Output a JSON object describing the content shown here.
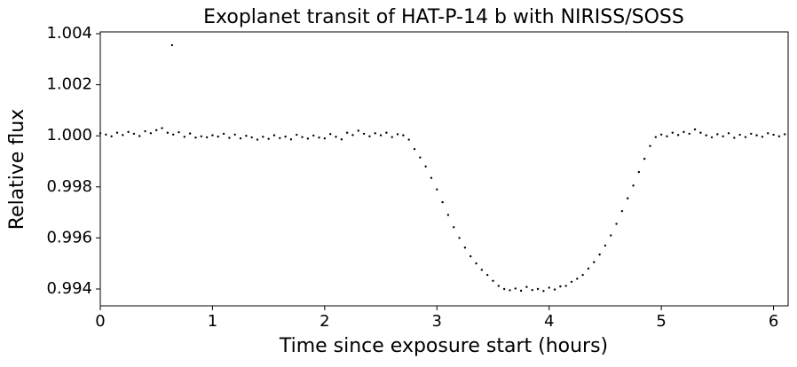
{
  "chart_data": {
    "type": "scatter",
    "title": "Exoplanet transit of HAT-P-14 b with NIRISS/SOSS",
    "x_label": "Time since exposure start (hours)",
    "y_label": "Relative flux",
    "color": "#000000",
    "xlim": [
      0,
      6.13
    ],
    "ylim": [
      0.99334,
      1.00407
    ],
    "xticks": [
      0,
      1,
      2,
      3,
      4,
      5,
      6
    ],
    "yticks": [
      0.994,
      0.996,
      0.998,
      {
        "value": 1,
        "label": "1.000"
      },
      1.002,
      1.004
    ],
    "x": [
      0.0,
      0.05,
      0.1,
      0.15,
      0.2,
      0.25,
      0.3,
      0.35,
      0.4,
      0.45,
      0.5,
      0.55,
      0.6,
      0.64,
      0.65,
      0.7,
      0.75,
      0.8,
      0.85,
      0.9,
      0.95,
      1.0,
      1.05,
      1.1,
      1.15,
      1.2,
      1.25,
      1.3,
      1.35,
      1.4,
      1.45,
      1.5,
      1.55,
      1.6,
      1.65,
      1.7,
      1.75,
      1.8,
      1.85,
      1.9,
      1.95,
      2.0,
      2.05,
      2.1,
      2.15,
      2.2,
      2.25,
      2.3,
      2.35,
      2.4,
      2.45,
      2.5,
      2.55,
      2.6,
      2.65,
      2.7,
      2.75,
      2.8,
      2.85,
      2.9,
      2.95,
      3.0,
      3.05,
      3.1,
      3.15,
      3.2,
      3.25,
      3.3,
      3.35,
      3.4,
      3.45,
      3.5,
      3.55,
      3.6,
      3.65,
      3.7,
      3.75,
      3.8,
      3.85,
      3.9,
      3.95,
      4.0,
      4.05,
      4.1,
      4.15,
      4.2,
      4.25,
      4.3,
      4.35,
      4.4,
      4.45,
      4.5,
      4.55,
      4.6,
      4.65,
      4.7,
      4.75,
      4.8,
      4.85,
      4.9,
      4.95,
      5.0,
      5.05,
      5.1,
      5.15,
      5.2,
      5.25,
      5.3,
      5.35,
      5.4,
      5.45,
      5.5,
      5.55,
      5.6,
      5.65,
      5.7,
      5.75,
      5.8,
      5.85,
      5.9,
      5.95,
      6.0,
      6.05,
      6.1
    ],
    "values": [
      1.0001,
      1.00005,
      0.99998,
      1.00012,
      1.00003,
      1.00015,
      1.00008,
      0.99999,
      1.00018,
      1.0001,
      1.00022,
      1.0003,
      1.00012,
      1.00355,
      1.00005,
      1.00014,
      0.99996,
      1.00009,
      0.99993,
      0.99998,
      0.99994,
      1.00002,
      0.99997,
      1.00008,
      0.99992,
      1.00005,
      0.9999,
      1.0,
      0.99994,
      0.99985,
      0.99996,
      0.99988,
      1.00002,
      0.99991,
      0.99997,
      0.99986,
      1.00004,
      0.99995,
      0.99989,
      1.00001,
      0.99993,
      0.9999,
      1.00007,
      0.99996,
      0.99986,
      1.00012,
      1.00003,
      1.0002,
      1.00008,
      0.99998,
      1.0001,
      1.00002,
      1.00012,
      0.99995,
      1.00006,
      1.00002,
      0.99985,
      0.99948,
      0.99915,
      0.9988,
      0.99835,
      0.9979,
      0.9974,
      0.9969,
      0.99642,
      0.996,
      0.99562,
      0.99528,
      0.995,
      0.99475,
      0.99455,
      0.99432,
      0.99412,
      0.994,
      0.99395,
      0.99402,
      0.99393,
      0.99408,
      0.99396,
      0.994,
      0.99392,
      0.99405,
      0.99398,
      0.9941,
      0.99412,
      0.99428,
      0.9944,
      0.99455,
      0.9948,
      0.99505,
      0.99535,
      0.9957,
      0.9961,
      0.99655,
      0.99705,
      0.99755,
      0.99805,
      0.99858,
      0.9991,
      0.9996,
      0.99995,
      1.00005,
      0.99998,
      1.00012,
      1.00003,
      1.00015,
      1.00008,
      1.00025,
      1.00012,
      1.00002,
      0.99994,
      1.00006,
      0.99998,
      1.0001,
      0.99992,
      1.00004,
      0.99995,
      1.00008,
      1.00002,
      0.99996,
      1.0001,
      1.00004,
      0.99998,
      1.00006
    ]
  }
}
